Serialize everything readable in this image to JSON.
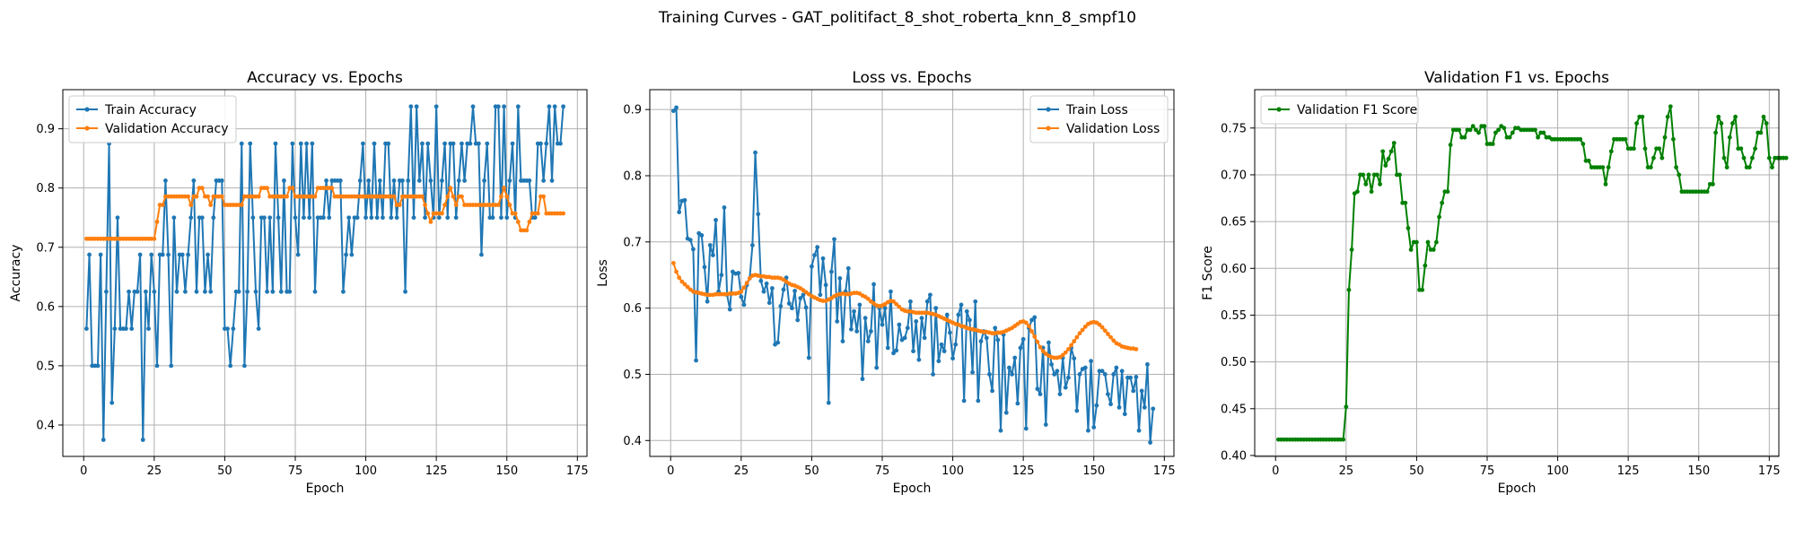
{
  "figure": {
    "suptitle": "Training Curves - GAT_politifact_8_shot_roberta_knn_8_smpf10"
  },
  "chart_data": [
    {
      "type": "line",
      "title": "Accuracy vs. Epochs",
      "xlabel": "Epoch",
      "ylabel": "Accuracy",
      "xlim": [
        -7.4,
        178.4
      ],
      "ylim": [
        0.347,
        0.966
      ],
      "xticks": [
        0,
        25,
        50,
        75,
        100,
        125,
        150,
        175
      ],
      "yticks": [
        0.4,
        0.5,
        0.6,
        0.7,
        0.8,
        0.9
      ],
      "ytick_labels": [
        "0.4",
        "0.5",
        "0.6",
        "0.7",
        "0.8",
        "0.9"
      ],
      "grid": true,
      "legend_loc": "upper-left",
      "series": [
        {
          "name": "Train Accuracy",
          "color": "#1f77b4",
          "x_start": 1,
          "values": [
            0.5625,
            0.6875,
            0.5,
            0.5,
            0.5,
            0.6875,
            0.375,
            0.625,
            0.875,
            0.4375,
            0.5625,
            0.75,
            0.5625,
            0.5625,
            0.5625,
            0.625,
            0.5625,
            0.625,
            0.625,
            0.6875,
            0.375,
            0.625,
            0.5625,
            0.6875,
            0.625,
            0.5,
            0.6875,
            0.6875,
            0.8125,
            0.6875,
            0.5,
            0.75,
            0.625,
            0.6875,
            0.6875,
            0.625,
            0.6875,
            0.75,
            0.8125,
            0.625,
            0.75,
            0.75,
            0.625,
            0.6875,
            0.625,
            0.75,
            0.8125,
            0.8125,
            0.8125,
            0.5625,
            0.5625,
            0.5,
            0.5625,
            0.625,
            0.625,
            0.875,
            0.5,
            0.625,
            0.875,
            0.75,
            0.625,
            0.5625,
            0.75,
            0.75,
            0.625,
            0.75,
            0.625,
            0.875,
            0.75,
            0.625,
            0.8125,
            0.625,
            0.625,
            0.875,
            0.75,
            0.6875,
            0.875,
            0.75,
            0.875,
            0.75,
            0.875,
            0.625,
            0.75,
            0.75,
            0.75,
            0.8125,
            0.75,
            0.8125,
            0.8125,
            0.8125,
            0.8125,
            0.625,
            0.6875,
            0.75,
            0.6875,
            0.75,
            0.75,
            0.8125,
            0.875,
            0.75,
            0.8125,
            0.75,
            0.875,
            0.75,
            0.8125,
            0.75,
            0.875,
            0.875,
            0.75,
            0.8125,
            0.75,
            0.8125,
            0.8125,
            0.625,
            0.8125,
            0.9375,
            0.75,
            0.9375,
            0.8125,
            0.875,
            0.75,
            0.875,
            0.8125,
            0.75,
            0.9375,
            0.75,
            0.8125,
            0.875,
            0.75,
            0.875,
            0.875,
            0.75,
            0.8125,
            0.875,
            0.8125,
            0.875,
            0.875,
            0.9375,
            0.875,
            0.875,
            0.6875,
            0.8125,
            0.875,
            0.75,
            0.75,
            0.9375,
            0.9375,
            0.75,
            0.9375,
            0.75,
            0.8125,
            0.875,
            0.75,
            0.9375,
            0.8125,
            0.8125,
            0.8125,
            0.8125,
            0.75,
            0.75,
            0.875,
            0.875,
            0.8125,
            0.875,
            0.9375,
            0.8125,
            0.9375,
            0.875,
            0.875,
            0.9375
          ]
        },
        {
          "name": "Validation Accuracy",
          "color": "#ff7f0e",
          "x_start": 1,
          "values": [
            0.7143,
            0.7143,
            0.7143,
            0.7143,
            0.7143,
            0.7143,
            0.7143,
            0.7143,
            0.7143,
            0.7143,
            0.7143,
            0.7143,
            0.7143,
            0.7143,
            0.7143,
            0.7143,
            0.7143,
            0.7143,
            0.7143,
            0.7143,
            0.7143,
            0.7143,
            0.7143,
            0.7143,
            0.7143,
            0.7429,
            0.7714,
            0.7714,
            0.7857,
            0.7857,
            0.7857,
            0.7857,
            0.7857,
            0.7857,
            0.7857,
            0.7857,
            0.7857,
            0.7714,
            0.7857,
            0.7857,
            0.8,
            0.8,
            0.7857,
            0.7857,
            0.7714,
            0.7857,
            0.7857,
            0.7857,
            0.7857,
            0.7714,
            0.7714,
            0.7714,
            0.7714,
            0.7714,
            0.7714,
            0.7714,
            0.7857,
            0.7857,
            0.7857,
            0.7857,
            0.7857,
            0.7857,
            0.8,
            0.8,
            0.8,
            0.7857,
            0.7857,
            0.7857,
            0.7857,
            0.7857,
            0.7857,
            0.7857,
            0.8,
            0.8,
            0.7857,
            0.7857,
            0.7857,
            0.7857,
            0.7857,
            0.7857,
            0.7857,
            0.7857,
            0.8,
            0.8,
            0.8,
            0.8,
            0.8,
            0.8,
            0.7857,
            0.7857,
            0.7857,
            0.7857,
            0.7857,
            0.7857,
            0.7857,
            0.7857,
            0.7857,
            0.7857,
            0.7857,
            0.7857,
            0.7857,
            0.7857,
            0.7857,
            0.7857,
            0.7857,
            0.7857,
            0.7857,
            0.7857,
            0.7857,
            0.7857,
            0.7714,
            0.7714,
            0.7857,
            0.7857,
            0.7857,
            0.7857,
            0.7857,
            0.7857,
            0.7857,
            0.7857,
            0.7714,
            0.7571,
            0.7429,
            0.7571,
            0.7571,
            0.7571,
            0.7571,
            0.7714,
            0.7857,
            0.8,
            0.7857,
            0.7714,
            0.7857,
            0.7857,
            0.7714,
            0.7714,
            0.7714,
            0.7714,
            0.7714,
            0.7714,
            0.7714,
            0.7714,
            0.7714,
            0.7714,
            0.7714,
            0.7714,
            0.7714,
            0.7857,
            0.8,
            0.7857,
            0.7714,
            0.7571,
            0.7571,
            0.7429,
            0.7286,
            0.7286,
            0.7286,
            0.7429,
            0.7571,
            0.7571,
            0.7571,
            0.7857,
            0.7857,
            0.7571,
            0.7571,
            0.7571,
            0.7571,
            0.7571,
            0.7571,
            0.7571
          ]
        }
      ]
    },
    {
      "type": "line",
      "title": "Loss vs. Epochs",
      "xlabel": "Epoch",
      "ylabel": "Loss",
      "xlim": [
        -7.4,
        178.4
      ],
      "ylim": [
        0.376,
        0.93
      ],
      "xticks": [
        0,
        25,
        50,
        75,
        100,
        125,
        150,
        175
      ],
      "yticks": [
        0.4,
        0.5,
        0.6,
        0.7,
        0.8,
        0.9
      ],
      "ytick_labels": [
        "0.4",
        "0.5",
        "0.6",
        "0.7",
        "0.8",
        "0.9"
      ],
      "grid": true,
      "legend_loc": "upper-right",
      "series": [
        {
          "name": "Train Loss",
          "color": "#1f77b4",
          "x_start": 1,
          "values": [
            0.898,
            0.903,
            0.745,
            0.762,
            0.763,
            0.705,
            0.703,
            0.689,
            0.521,
            0.713,
            0.71,
            0.662,
            0.61,
            0.695,
            0.68,
            0.733,
            0.625,
            0.65,
            0.752,
            0.62,
            0.598,
            0.655,
            0.652,
            0.653,
            0.617,
            0.605,
            0.635,
            0.645,
            0.695,
            0.835,
            0.742,
            0.641,
            0.625,
            0.637,
            0.608,
            0.63,
            0.545,
            0.548,
            0.603,
            0.628,
            0.646,
            0.607,
            0.6,
            0.626,
            0.582,
            0.615,
            0.62,
            0.601,
            0.525,
            0.663,
            0.68,
            0.692,
            0.62,
            0.675,
            0.635,
            0.457,
            0.655,
            0.704,
            0.58,
            0.645,
            0.55,
            0.625,
            0.66,
            0.568,
            0.595,
            0.565,
            0.605,
            0.493,
            0.585,
            0.55,
            0.565,
            0.636,
            0.51,
            0.6,
            0.575,
            0.6,
            0.54,
            0.625,
            0.532,
            0.536,
            0.575,
            0.552,
            0.555,
            0.57,
            0.61,
            0.535,
            0.58,
            0.522,
            0.585,
            0.555,
            0.61,
            0.62,
            0.5,
            0.6,
            0.52,
            0.545,
            0.535,
            0.59,
            0.563,
            0.524,
            0.545,
            0.59,
            0.605,
            0.46,
            0.595,
            0.582,
            0.503,
            0.61,
            0.46,
            0.55,
            0.565,
            0.555,
            0.5,
            0.475,
            0.57,
            0.552,
            0.415,
            0.56,
            0.442,
            0.51,
            0.5,
            0.525,
            0.456,
            0.54,
            0.553,
            0.418,
            0.57,
            0.582,
            0.586,
            0.478,
            0.47,
            0.54,
            0.424,
            0.548,
            0.515,
            0.5,
            0.505,
            0.47,
            0.525,
            0.48,
            0.495,
            0.54,
            0.524,
            0.445,
            0.5,
            0.508,
            0.51,
            0.415,
            0.52,
            0.42,
            0.453,
            0.505,
            0.505,
            0.5,
            0.47,
            0.455,
            0.5,
            0.51,
            0.45,
            0.505,
            0.44,
            0.495,
            0.495,
            0.475,
            0.496,
            0.415,
            0.475,
            0.45,
            0.515,
            0.397,
            0.448
          ]
        },
        {
          "name": "Validation Loss",
          "color": "#ff7f0e",
          "x_start": 1,
          "values": [
            0.668,
            0.655,
            0.646,
            0.64,
            0.636,
            0.632,
            0.628,
            0.625,
            0.624,
            0.623,
            0.622,
            0.621,
            0.62,
            0.62,
            0.62,
            0.621,
            0.621,
            0.621,
            0.621,
            0.621,
            0.622,
            0.622,
            0.622,
            0.623,
            0.625,
            0.631,
            0.638,
            0.645,
            0.649,
            0.65,
            0.649,
            0.648,
            0.648,
            0.647,
            0.647,
            0.646,
            0.646,
            0.646,
            0.645,
            0.643,
            0.64,
            0.637,
            0.635,
            0.634,
            0.632,
            0.63,
            0.627,
            0.624,
            0.621,
            0.618,
            0.616,
            0.614,
            0.612,
            0.611,
            0.611,
            0.613,
            0.615,
            0.618,
            0.62,
            0.621,
            0.622,
            0.621,
            0.621,
            0.622,
            0.623,
            0.623,
            0.622,
            0.619,
            0.617,
            0.614,
            0.61,
            0.607,
            0.604,
            0.603,
            0.604,
            0.606,
            0.609,
            0.611,
            0.61,
            0.606,
            0.602,
            0.598,
            0.596,
            0.595,
            0.595,
            0.594,
            0.593,
            0.593,
            0.593,
            0.593,
            0.593,
            0.592,
            0.591,
            0.59,
            0.588,
            0.586,
            0.584,
            0.582,
            0.58,
            0.578,
            0.576,
            0.575,
            0.573,
            0.572,
            0.57,
            0.569,
            0.568,
            0.567,
            0.566,
            0.565,
            0.564,
            0.564,
            0.563,
            0.562,
            0.562,
            0.563,
            0.563,
            0.564,
            0.566,
            0.568,
            0.57,
            0.573,
            0.576,
            0.579,
            0.58,
            0.578,
            0.573,
            0.565,
            0.557,
            0.549,
            0.541,
            0.535,
            0.531,
            0.528,
            0.526,
            0.525,
            0.525,
            0.526,
            0.529,
            0.533,
            0.538,
            0.544,
            0.55,
            0.556,
            0.562,
            0.567,
            0.572,
            0.576,
            0.578,
            0.579,
            0.578,
            0.575,
            0.571,
            0.566,
            0.561,
            0.556,
            0.551,
            0.547,
            0.545,
            0.542,
            0.541,
            0.54,
            0.539,
            0.539,
            0.538
          ]
        }
      ]
    },
    {
      "type": "line",
      "title": "Validation F1 vs. Epochs",
      "xlabel": "Epoch",
      "ylabel": "F1 Score",
      "xlim": [
        -7.4,
        178.4
      ],
      "ylim": [
        0.399,
        0.791
      ],
      "xticks": [
        0,
        25,
        50,
        75,
        100,
        125,
        150,
        175
      ],
      "yticks": [
        0.4,
        0.45,
        0.5,
        0.55,
        0.6,
        0.65,
        0.7,
        0.75
      ],
      "ytick_labels": [
        "0.40",
        "0.45",
        "0.50",
        "0.55",
        "0.60",
        "0.65",
        "0.70",
        "0.75"
      ],
      "grid": true,
      "legend_loc": "upper-left",
      "series": [
        {
          "name": "Validation F1 Score",
          "color": "#008000",
          "x_start": 1,
          "values": [
            0.417,
            0.417,
            0.417,
            0.417,
            0.417,
            0.417,
            0.417,
            0.417,
            0.417,
            0.417,
            0.417,
            0.417,
            0.417,
            0.417,
            0.417,
            0.417,
            0.417,
            0.417,
            0.417,
            0.417,
            0.417,
            0.417,
            0.417,
            0.417,
            0.452,
            0.577,
            0.62,
            0.68,
            0.682,
            0.7,
            0.7,
            0.69,
            0.7,
            0.682,
            0.7,
            0.7,
            0.69,
            0.725,
            0.71,
            0.717,
            0.725,
            0.734,
            0.7,
            0.7,
            0.67,
            0.67,
            0.643,
            0.62,
            0.628,
            0.628,
            0.577,
            0.577,
            0.603,
            0.628,
            0.62,
            0.62,
            0.628,
            0.655,
            0.67,
            0.682,
            0.682,
            0.732,
            0.748,
            0.748,
            0.748,
            0.74,
            0.74,
            0.748,
            0.748,
            0.752,
            0.748,
            0.745,
            0.752,
            0.752,
            0.733,
            0.733,
            0.733,
            0.745,
            0.748,
            0.752,
            0.75,
            0.74,
            0.74,
            0.745,
            0.75,
            0.75,
            0.748,
            0.748,
            0.748,
            0.748,
            0.748,
            0.748,
            0.74,
            0.745,
            0.745,
            0.74,
            0.74,
            0.738,
            0.738,
            0.738,
            0.738,
            0.738,
            0.738,
            0.738,
            0.738,
            0.738,
            0.738,
            0.738,
            0.733,
            0.715,
            0.715,
            0.708,
            0.708,
            0.708,
            0.708,
            0.708,
            0.69,
            0.708,
            0.725,
            0.738,
            0.738,
            0.738,
            0.738,
            0.738,
            0.728,
            0.728,
            0.728,
            0.755,
            0.762,
            0.762,
            0.728,
            0.708,
            0.708,
            0.718,
            0.728,
            0.728,
            0.718,
            0.74,
            0.762,
            0.773,
            0.738,
            0.708,
            0.7,
            0.682,
            0.682,
            0.682,
            0.682,
            0.682,
            0.682,
            0.682,
            0.682,
            0.682,
            0.682,
            0.69,
            0.69,
            0.745,
            0.762,
            0.755,
            0.718,
            0.708,
            0.74,
            0.755,
            0.762,
            0.728,
            0.728,
            0.718,
            0.708,
            0.708,
            0.718,
            0.728,
            0.745,
            0.745,
            0.762,
            0.755,
            0.718,
            0.708,
            0.718,
            0.718,
            0.718,
            0.718,
            0.718
          ]
        }
      ]
    }
  ]
}
